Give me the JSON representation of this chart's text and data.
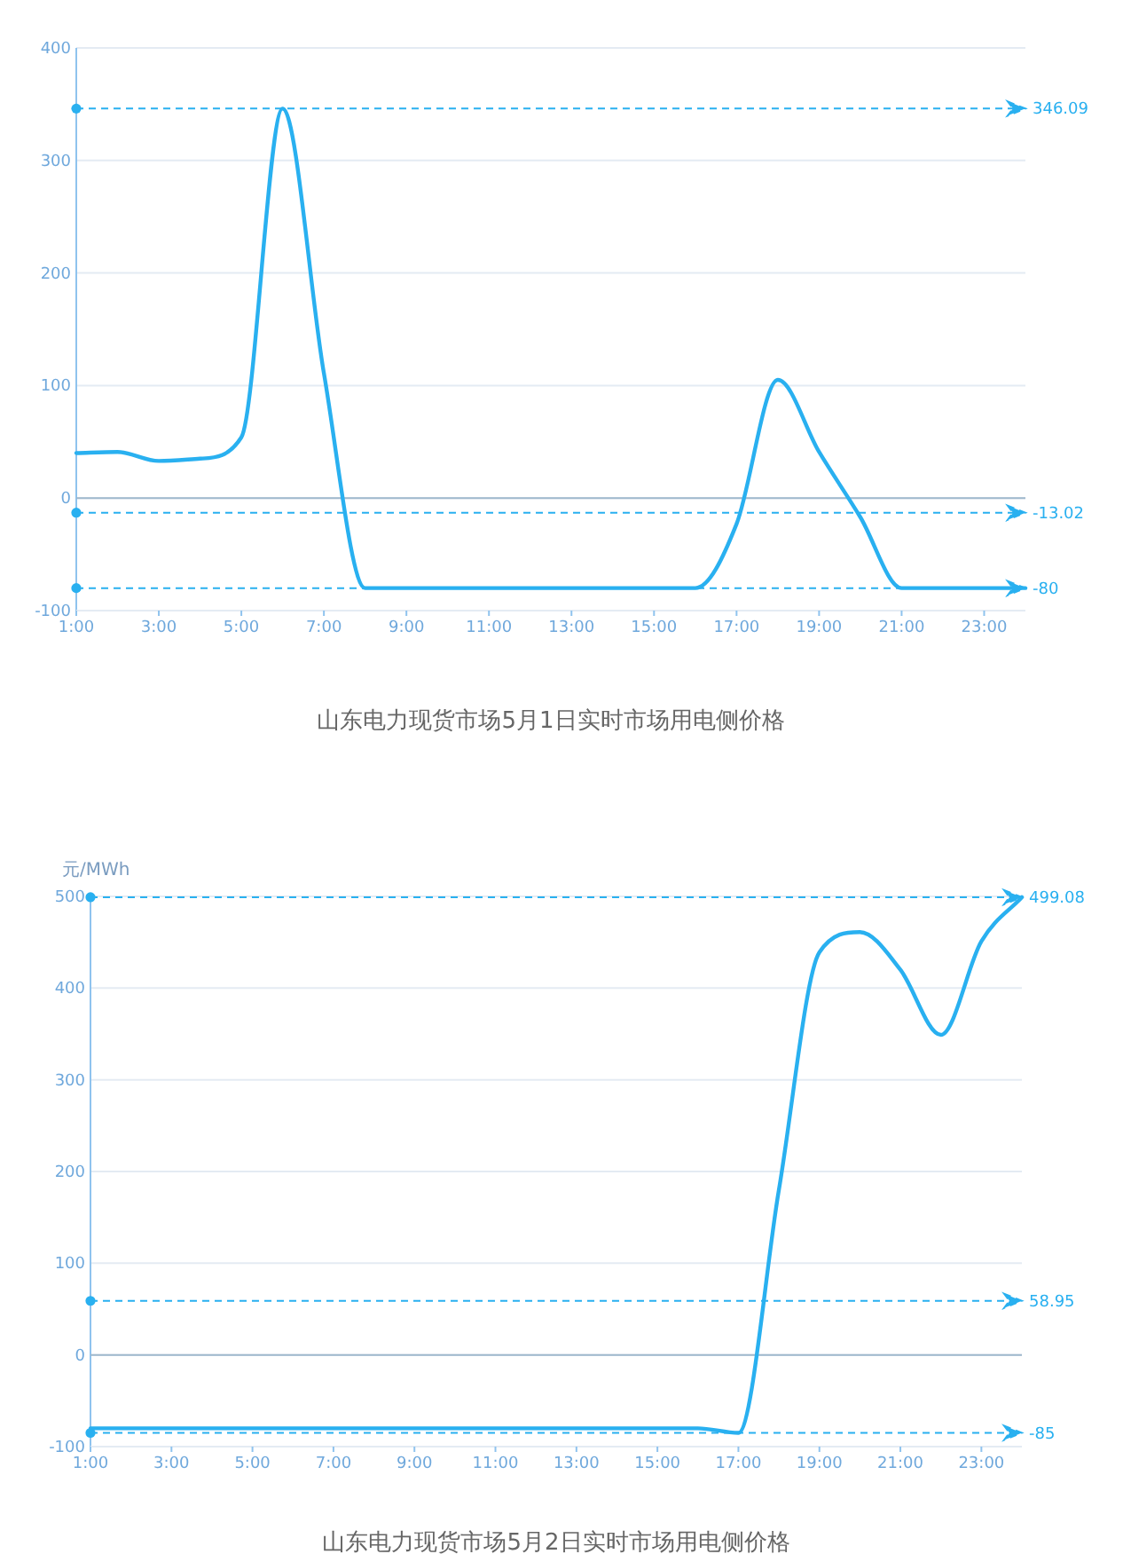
{
  "chart_data": [
    {
      "type": "line",
      "title": "山东电力现货市场5月1日实时市场用电侧价格",
      "x": [
        1,
        2,
        3,
        4,
        5,
        6,
        7,
        8,
        9,
        10,
        11,
        12,
        13,
        14,
        15,
        16,
        17,
        18,
        19,
        20,
        21,
        22,
        23,
        24
      ],
      "series": [
        {
          "color": "#29b0f0",
          "values": [
            40,
            41,
            33,
            35,
            54,
            346.09,
            111,
            -80,
            -80,
            -80,
            -80,
            -80,
            -80,
            -80,
            -80,
            -80,
            -23,
            105,
            41,
            -17,
            -80,
            -80,
            -80,
            -80
          ]
        }
      ],
      "xlim": [
        1,
        24
      ],
      "xticks": [
        {
          "value": 1,
          "label": "1:00"
        },
        {
          "value": 3,
          "label": "3:00"
        },
        {
          "value": 5,
          "label": "5:00"
        },
        {
          "value": 7,
          "label": "7:00"
        },
        {
          "value": 9,
          "label": "9:00"
        },
        {
          "value": 11,
          "label": "11:00"
        },
        {
          "value": 13,
          "label": "13:00"
        },
        {
          "value": 15,
          "label": "15:00"
        },
        {
          "value": 17,
          "label": "17:00"
        },
        {
          "value": 19,
          "label": "19:00"
        },
        {
          "value": 21,
          "label": "21:00"
        },
        {
          "value": 23,
          "label": "23:00"
        }
      ],
      "ylim": [
        -100,
        400
      ],
      "yticks": [
        -100,
        0,
        100,
        200,
        300,
        400
      ],
      "grid": "y",
      "marker": "none",
      "line_style": "solid",
      "ref_lines": [
        {
          "axis": "y",
          "value": 0,
          "color": "#9fb8cc",
          "line_style": "solid"
        },
        {
          "axis": "y",
          "value": 346.09,
          "label": "346.09",
          "color": "#29b0f0",
          "line_style": "dashed"
        },
        {
          "axis": "y",
          "value": -13.02,
          "label": "-13.02",
          "color": "#29b0f0",
          "line_style": "dashed"
        },
        {
          "axis": "y",
          "value": -80,
          "label": "-80",
          "color": "#29b0f0",
          "line_style": "dashed"
        }
      ]
    },
    {
      "type": "line",
      "title": "山东电力现货市场5月2日实时市场用电侧价格",
      "ylabel": "元/MWh",
      "x": [
        1,
        2,
        3,
        4,
        5,
        6,
        7,
        8,
        9,
        10,
        11,
        12,
        13,
        14,
        15,
        16,
        17,
        18,
        19,
        20,
        21,
        22,
        23,
        24
      ],
      "series": [
        {
          "color": "#29b0f0",
          "values": [
            -80,
            -80,
            -80,
            -80,
            -80,
            -80,
            -80,
            -80,
            -80,
            -80,
            -80,
            -80,
            -80,
            -80,
            -80,
            -80,
            -85,
            180,
            439,
            461,
            420,
            349,
            451,
            499.08
          ]
        }
      ],
      "xlim": [
        1,
        24
      ],
      "xticks": [
        {
          "value": 1,
          "label": "1:00"
        },
        {
          "value": 3,
          "label": "3:00"
        },
        {
          "value": 5,
          "label": "5:00"
        },
        {
          "value": 7,
          "label": "7:00"
        },
        {
          "value": 9,
          "label": "9:00"
        },
        {
          "value": 11,
          "label": "11:00"
        },
        {
          "value": 13,
          "label": "13:00"
        },
        {
          "value": 15,
          "label": "15:00"
        },
        {
          "value": 17,
          "label": "17:00"
        },
        {
          "value": 19,
          "label": "19:00"
        },
        {
          "value": 21,
          "label": "21:00"
        },
        {
          "value": 23,
          "label": "23:00"
        }
      ],
      "ylim": [
        -100,
        500
      ],
      "yticks": [
        -100,
        0,
        100,
        200,
        300,
        400,
        500
      ],
      "grid": "y",
      "marker": "none",
      "line_style": "solid",
      "ref_lines": [
        {
          "axis": "y",
          "value": 0,
          "color": "#9fb8cc",
          "line_style": "solid"
        },
        {
          "axis": "y",
          "value": 499.08,
          "label": "499.08",
          "color": "#29b0f0",
          "line_style": "dashed"
        },
        {
          "axis": "y",
          "value": 58.95,
          "label": "58.95",
          "color": "#29b0f0",
          "line_style": "dashed"
        },
        {
          "axis": "y",
          "value": -85,
          "label": "-85",
          "color": "#29b0f0",
          "line_style": "dashed"
        }
      ]
    }
  ]
}
